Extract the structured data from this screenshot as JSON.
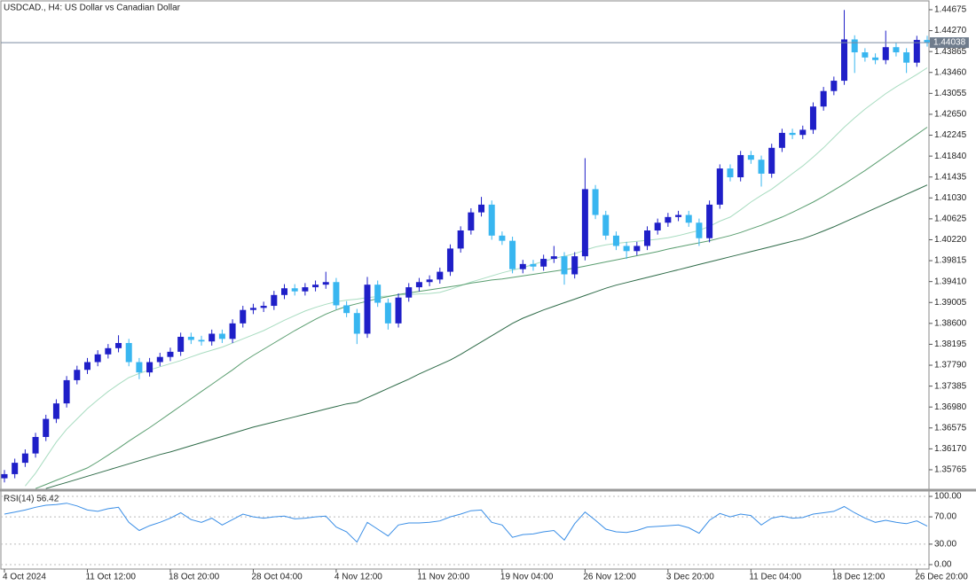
{
  "chart_data": [
    {
      "type": "candlestick",
      "title": "USDCAD., H4:  US Dollar vs Canadian Dollar",
      "categories": [
        "4 Oct 2024",
        null,
        null,
        null,
        null,
        null,
        null,
        null,
        "11 Oct 12:00",
        null,
        null,
        null,
        null,
        null,
        null,
        null,
        "18 Oct 20:00",
        null,
        null,
        null,
        null,
        null,
        null,
        null,
        "28 Oct 04:00",
        null,
        null,
        null,
        null,
        null,
        null,
        null,
        "4 Nov 12:00",
        null,
        null,
        null,
        null,
        null,
        null,
        null,
        "11 Nov 20:00",
        null,
        null,
        null,
        null,
        null,
        null,
        null,
        "19 Nov 04:00",
        null,
        null,
        null,
        null,
        null,
        null,
        null,
        "26 Nov 12:00",
        null,
        null,
        null,
        null,
        null,
        null,
        null,
        "3 Dec 20:00",
        null,
        null,
        null,
        null,
        null,
        null,
        null,
        "11 Dec 04:00",
        null,
        null,
        null,
        null,
        null,
        null,
        null,
        "18 Dec 12:00",
        null,
        null,
        null,
        null,
        null,
        null,
        null,
        "26 Dec 20:00",
        null
      ],
      "open": [
        1.356,
        1.3568,
        1.359,
        1.3608,
        1.364,
        1.3675,
        1.3705,
        1.375,
        1.377,
        1.3785,
        1.38,
        1.3812,
        1.3822,
        1.3785,
        1.3765,
        1.3785,
        1.3795,
        1.3805,
        1.3834,
        1.3828,
        1.3825,
        1.384,
        1.383,
        1.386,
        1.3886,
        1.389,
        1.3894,
        1.3915,
        1.3928,
        1.3922,
        1.393,
        1.3935,
        1.394,
        1.3895,
        1.388,
        1.384,
        1.3935,
        1.39,
        1.386,
        1.391,
        1.393,
        1.394,
        1.3945,
        1.396,
        1.4005,
        1.404,
        1.4075,
        1.409,
        1.403,
        1.402,
        1.3965,
        1.3975,
        1.397,
        1.3985,
        1.399,
        1.3955,
        1.399,
        1.412,
        1.407,
        1.403,
        1.401,
        1.4,
        1.401,
        1.404,
        1.4055,
        1.4066,
        1.407,
        1.4055,
        1.4025,
        1.409,
        1.416,
        1.4143,
        1.4186,
        1.4177,
        1.415,
        1.42,
        1.4229,
        1.4225,
        1.4235,
        1.428,
        1.431,
        1.433,
        1.441,
        1.4385,
        1.4375,
        1.437,
        1.4395,
        1.4385,
        1.4365,
        1.4409
      ],
      "high": [
        1.3576,
        1.3598,
        1.3616,
        1.3648,
        1.3683,
        1.3713,
        1.3758,
        1.3778,
        1.3793,
        1.3808,
        1.382,
        1.3837,
        1.383,
        1.3793,
        1.3793,
        1.3803,
        1.3813,
        1.3842,
        1.3842,
        1.3836,
        1.3848,
        1.3848,
        1.3868,
        1.3894,
        1.3898,
        1.3902,
        1.3923,
        1.3936,
        1.3936,
        1.3938,
        1.3943,
        1.396,
        1.3948,
        1.3903,
        1.3888,
        1.395,
        1.3943,
        1.3908,
        1.3918,
        1.3938,
        1.3948,
        1.3953,
        1.3968,
        1.4013,
        1.4048,
        1.4083,
        1.4105,
        1.4098,
        1.4038,
        1.4028,
        1.3983,
        1.3983,
        1.3993,
        1.401,
        1.3998,
        1.3998,
        1.418,
        1.4128,
        1.4078,
        1.4038,
        1.4018,
        1.4018,
        1.4048,
        1.4063,
        1.4074,
        1.4078,
        1.4078,
        1.4063,
        1.4098,
        1.4168,
        1.4168,
        1.4194,
        1.4194,
        1.4185,
        1.4208,
        1.4237,
        1.4237,
        1.4243,
        1.4288,
        1.4318,
        1.4338,
        1.4467,
        1.4418,
        1.4393,
        1.4383,
        1.4427,
        1.4403,
        1.4393,
        1.4417,
        1.4417
      ],
      "low": [
        1.3552,
        1.356,
        1.3582,
        1.36,
        1.3632,
        1.3667,
        1.3697,
        1.3742,
        1.3762,
        1.3777,
        1.3792,
        1.3804,
        1.3777,
        1.3752,
        1.3757,
        1.3777,
        1.3787,
        1.3797,
        1.382,
        1.3817,
        1.3817,
        1.3822,
        1.3822,
        1.3852,
        1.3878,
        1.3882,
        1.3886,
        1.3907,
        1.3914,
        1.3914,
        1.3922,
        1.3927,
        1.3887,
        1.3872,
        1.382,
        1.3832,
        1.3892,
        1.3848,
        1.3852,
        1.3902,
        1.3922,
        1.3932,
        1.3937,
        1.3952,
        1.3997,
        1.4032,
        1.4067,
        1.4022,
        1.4012,
        1.3957,
        1.3957,
        1.3962,
        1.3962,
        1.3977,
        1.3935,
        1.3947,
        1.3982,
        1.4062,
        1.4022,
        1.4002,
        1.3985,
        1.3992,
        1.4002,
        1.4032,
        1.4047,
        1.4058,
        1.4047,
        1.401,
        1.4017,
        1.4082,
        1.4135,
        1.4135,
        1.4169,
        1.4125,
        1.4142,
        1.4192,
        1.4217,
        1.4217,
        1.4227,
        1.4272,
        1.4302,
        1.4322,
        1.4345,
        1.4367,
        1.4362,
        1.4362,
        1.4377,
        1.4345,
        1.4357,
        1.4396
      ],
      "close": [
        1.3568,
        1.359,
        1.3608,
        1.364,
        1.3675,
        1.3705,
        1.375,
        1.377,
        1.3785,
        1.38,
        1.3812,
        1.3822,
        1.3785,
        1.3765,
        1.3785,
        1.3795,
        1.3805,
        1.3834,
        1.3828,
        1.3825,
        1.384,
        1.383,
        1.386,
        1.3886,
        1.389,
        1.3894,
        1.3915,
        1.3928,
        1.3922,
        1.393,
        1.3935,
        1.394,
        1.3895,
        1.388,
        1.384,
        1.3935,
        1.39,
        1.386,
        1.391,
        1.393,
        1.394,
        1.3945,
        1.396,
        1.4005,
        1.404,
        1.4075,
        1.409,
        1.403,
        1.402,
        1.3965,
        1.3975,
        1.397,
        1.3985,
        1.399,
        1.3955,
        1.399,
        1.412,
        1.407,
        1.403,
        1.401,
        1.4,
        1.401,
        1.404,
        1.4055,
        1.4066,
        1.407,
        1.4055,
        1.4025,
        1.409,
        1.416,
        1.4143,
        1.4186,
        1.4177,
        1.415,
        1.42,
        1.4229,
        1.4225,
        1.4235,
        1.428,
        1.431,
        1.433,
        1.441,
        1.4385,
        1.4375,
        1.437,
        1.4395,
        1.4385,
        1.4365,
        1.4409,
        1.44038
      ],
      "up_color": "#1f1fc8",
      "down_color": "#38b6f0",
      "series": [
        {
          "color": "#a8dcc0",
          "values": [
            null,
            null,
            1.3545,
            1.357,
            1.36,
            1.363,
            1.3655,
            1.3675,
            1.3695,
            1.3712,
            1.3728,
            1.3742,
            1.3755,
            1.3763,
            1.377,
            1.3776,
            1.3782,
            1.3788,
            1.3795,
            1.3802,
            1.3808,
            1.3814,
            1.3822,
            1.383,
            1.3838,
            1.3846,
            1.3856,
            1.3866,
            1.3875,
            1.3884,
            1.3891,
            1.3897,
            1.3902,
            1.3905,
            1.3907,
            1.391,
            1.3912,
            1.3913,
            1.3915,
            1.3916,
            1.3917,
            1.3918,
            1.392,
            1.3926,
            1.3933,
            1.394,
            1.3946,
            1.3952,
            1.3958,
            1.3963,
            1.3968,
            1.3974,
            1.398,
            1.3986,
            1.399,
            1.3995,
            1.4002,
            1.4008,
            1.4012,
            1.4015,
            1.4017,
            1.4019,
            1.4021,
            1.4023,
            1.4026,
            1.403,
            1.4035,
            1.404,
            1.4048,
            1.4058,
            1.4066,
            1.408,
            1.4095,
            1.4108,
            1.412,
            1.4135,
            1.415,
            1.4165,
            1.4182,
            1.42,
            1.422,
            1.424,
            1.4258,
            1.4275,
            1.429,
            1.4305,
            1.4318,
            1.433,
            1.4342,
            1.4355
          ]
        },
        {
          "color": "#5a9e70",
          "values": [
            null,
            null,
            null,
            1.354,
            1.3548,
            1.3556,
            1.3564,
            1.3572,
            1.358,
            1.3592,
            1.3605,
            1.3618,
            1.3632,
            1.3645,
            1.3658,
            1.3672,
            1.3686,
            1.37,
            1.3714,
            1.3728,
            1.3742,
            1.3756,
            1.377,
            1.3785,
            1.3798,
            1.381,
            1.3822,
            1.3834,
            1.3846,
            1.3857,
            1.3868,
            1.3878,
            1.3886,
            1.3893,
            1.3898,
            1.3903,
            1.3908,
            1.3912,
            1.3916,
            1.3919,
            1.3922,
            1.3925,
            1.3928,
            1.3931,
            1.3934,
            1.3938,
            1.3941,
            1.3944,
            1.3946,
            1.3949,
            1.3952,
            1.3955,
            1.3958,
            1.3961,
            1.3964,
            1.3967,
            1.3971,
            1.3975,
            1.3979,
            1.3983,
            1.3987,
            1.3991,
            1.3995,
            1.3999,
            1.4004,
            1.4008,
            1.4012,
            1.4016,
            1.402,
            1.4025,
            1.403,
            1.4036,
            1.4043,
            1.405,
            1.4058,
            1.4066,
            1.4075,
            1.4085,
            1.4095,
            1.4106,
            1.4118,
            1.413,
            1.4143,
            1.4156,
            1.417,
            1.4184,
            1.4198,
            1.4212,
            1.4226,
            1.424
          ]
        },
        {
          "color": "#2e6b48",
          "values": [
            null,
            null,
            null,
            null,
            1.354,
            1.3546,
            1.3552,
            1.3558,
            1.3564,
            1.357,
            1.3576,
            1.3582,
            1.3588,
            1.3594,
            1.36,
            1.3606,
            1.3611,
            1.3617,
            1.3623,
            1.3629,
            1.3635,
            1.3641,
            1.3647,
            1.3653,
            1.3659,
            1.3664,
            1.3669,
            1.3674,
            1.3679,
            1.3684,
            1.3689,
            1.3694,
            1.3699,
            1.3704,
            1.3707,
            1.3716,
            1.3725,
            1.3734,
            1.3743,
            1.3752,
            1.3762,
            1.3771,
            1.378,
            1.3789,
            1.38,
            1.3812,
            1.3824,
            1.3836,
            1.3848,
            1.386,
            1.387,
            1.3878,
            1.3886,
            1.3893,
            1.39,
            1.3907,
            1.3914,
            1.3921,
            1.3928,
            1.3934,
            1.3939,
            1.3944,
            1.3949,
            1.3954,
            1.3959,
            1.3964,
            1.3969,
            1.3974,
            1.3979,
            1.3984,
            1.3989,
            1.3994,
            1.3999,
            1.4004,
            1.4009,
            1.4014,
            1.4019,
            1.4024,
            1.4031,
            1.4039,
            1.4047,
            1.4056,
            1.4065,
            1.4074,
            1.4083,
            1.4092,
            1.4101,
            1.411,
            1.4119,
            1.4128
          ]
        }
      ],
      "last": 1.44038,
      "ylim": [
        1.35387,
        1.44812
      ],
      "yticks": [
        1.44675,
        {
          "value": 1.4427,
          "label": "1.44270"
        },
        1.43865,
        {
          "value": 1.4346,
          "label": "1.43460"
        },
        1.43055,
        {
          "value": 1.4265,
          "label": "1.42650"
        },
        1.42245,
        {
          "value": 1.4184,
          "label": "1.41840"
        },
        1.41435,
        {
          "value": 1.4103,
          "label": "1.41030"
        },
        1.40625,
        {
          "value": 1.4022,
          "label": "1.40220"
        },
        1.39815,
        {
          "value": 1.3941,
          "label": "1.39410"
        },
        1.39005,
        {
          "value": 1.386,
          "label": "1.38600"
        },
        1.38195,
        {
          "value": 1.3779,
          "label": "1.37790"
        },
        1.37385,
        {
          "value": 1.3698,
          "label": "1.36980"
        },
        1.36575,
        {
          "value": 1.3617,
          "label": "1.36170"
        },
        1.35765
      ]
    },
    {
      "type": "line",
      "title": "RSI(14) 56.42",
      "series": [
        {
          "color": "#3a8ee6",
          "values": [
            74,
            77,
            80,
            84,
            87,
            88,
            90,
            86,
            80,
            78,
            82,
            84,
            62,
            50,
            57,
            62,
            68,
            76,
            66,
            62,
            68,
            58,
            66,
            74,
            70,
            68,
            70,
            71,
            67,
            68,
            70,
            71,
            55,
            48,
            33,
            62,
            52,
            42,
            58,
            61,
            61,
            62,
            64,
            70,
            74,
            79,
            80,
            62,
            58,
            40,
            44,
            45,
            48,
            50,
            36,
            60,
            77,
            65,
            52,
            48,
            47,
            50,
            55,
            56,
            57,
            58,
            54,
            46,
            65,
            75,
            70,
            74,
            72,
            58,
            68,
            71,
            68,
            69,
            74,
            76,
            78,
            85,
            76,
            68,
            62,
            65,
            62,
            60,
            64,
            56.42
          ]
        }
      ],
      "ylim": [
        0,
        100
      ],
      "yticks": [
        {
          "value": 100,
          "label": "100.00"
        },
        {
          "value": 70,
          "label": "70.00"
        },
        {
          "value": 30,
          "label": "30.00"
        },
        {
          "value": 0,
          "label": "0.00"
        }
      ],
      "grid": true
    }
  ]
}
